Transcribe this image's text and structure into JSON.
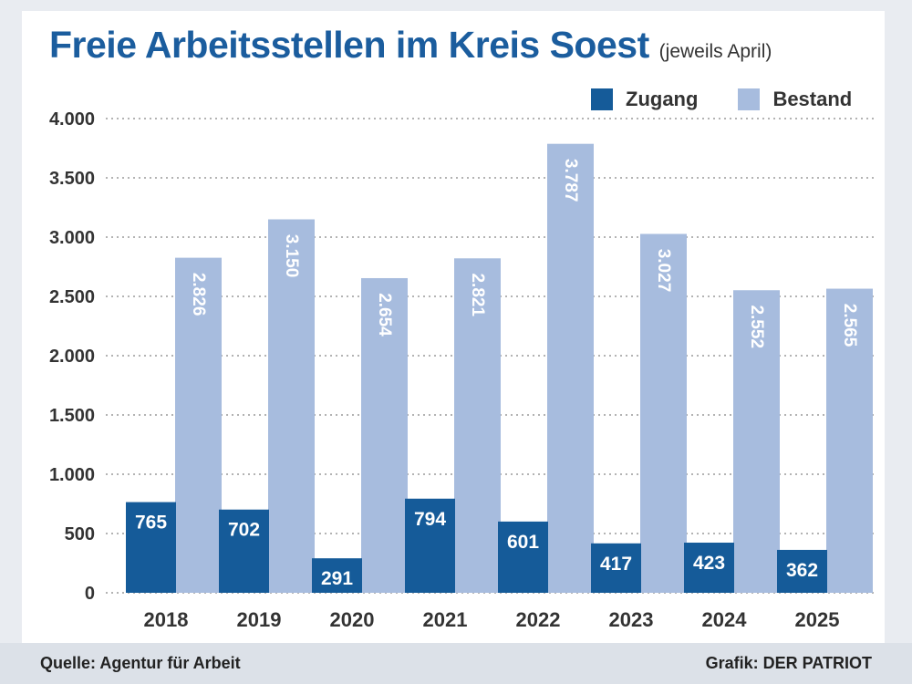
{
  "header": {
    "title": "Freie Arbeitsstellen im Kreis Soest",
    "subtitle": "(jeweils April)"
  },
  "legend": [
    {
      "label": "Zugang",
      "color": "#155b99"
    },
    {
      "label": "Bestand",
      "color": "#a7bcde"
    }
  ],
  "footer": {
    "source": "Quelle: Agentur für Arbeit",
    "credit": "Grafik: DER PATRIOT"
  },
  "chart_data": {
    "type": "bar",
    "title": "Freie Arbeitsstellen im Kreis Soest",
    "subtitle": "(jeweils April)",
    "xlabel": "",
    "ylabel": "",
    "ylim": [
      0,
      4000
    ],
    "grid": true,
    "legend_position": "top-right",
    "categories": [
      "2018",
      "2019",
      "2020",
      "2021",
      "2022",
      "2023",
      "2024",
      "2025"
    ],
    "y_ticks": [
      0,
      500,
      1000,
      1500,
      2000,
      2500,
      3000,
      3500,
      4000
    ],
    "y_tick_labels": [
      "0",
      "500",
      "1.000",
      "1.500",
      "2.000",
      "2.500",
      "3.000",
      "3.500",
      "4.000"
    ],
    "series": [
      {
        "name": "Zugang",
        "color": "#155b99",
        "values": [
          765,
          702,
          291,
          794,
          601,
          417,
          423,
          362
        ],
        "labels": [
          "765",
          "702",
          "291",
          "794",
          "601",
          "417",
          "423",
          "362"
        ]
      },
      {
        "name": "Bestand",
        "color": "#a7bcde",
        "values": [
          2826,
          3150,
          2654,
          2821,
          3787,
          3027,
          2552,
          2565
        ],
        "labels": [
          "2.826",
          "3.150",
          "2.654",
          "2.821",
          "3.787",
          "3.027",
          "2.552",
          "2.565"
        ]
      }
    ]
  }
}
